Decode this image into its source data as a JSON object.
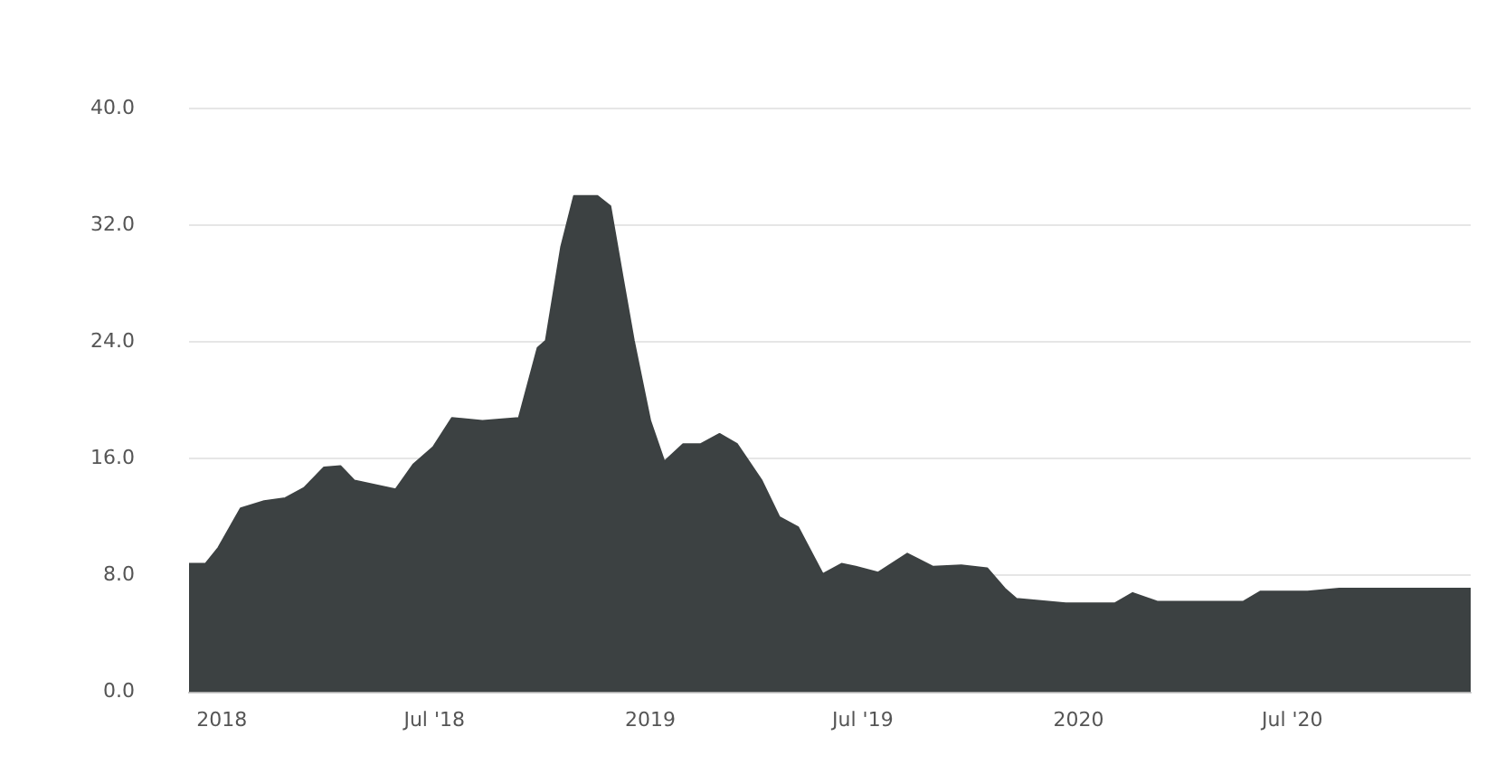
{
  "chart_data": {
    "type": "area",
    "x": [
      "2017-12-04",
      "2017-12-18",
      "2017-12-29",
      "2018-01-17",
      "2018-02-06",
      "2018-02-24",
      "2018-03-12",
      "2018-03-29",
      "2018-04-12",
      "2018-04-24",
      "2018-05-29",
      "2018-06-13",
      "2018-06-30",
      "2018-07-16",
      "2018-08-11",
      "2018-09-11",
      "2018-09-27",
      "2018-10-04",
      "2018-10-17",
      "2018-10-28",
      "2018-11-17",
      "2018-11-28",
      "2018-12-09",
      "2018-12-18",
      "2019-01-01",
      "2019-01-13",
      "2019-01-29",
      "2019-02-13",
      "2019-03-01",
      "2019-03-16",
      "2019-04-06",
      "2019-04-21",
      "2019-05-07",
      "2019-05-28",
      "2019-06-13",
      "2019-06-25",
      "2019-07-14",
      "2019-08-08",
      "2019-08-30",
      "2019-09-23",
      "2019-10-15",
      "2019-10-30",
      "2019-11-09",
      "2019-12-21",
      "2020-02-01",
      "2020-02-16",
      "2020-03-08",
      "2020-05-20",
      "2020-06-04",
      "2020-07-14",
      "2020-08-10",
      "2020-11-30"
    ],
    "values": [
      8.8,
      8.8,
      9.9,
      12.6,
      13.1,
      13.3,
      14.0,
      15.4,
      15.5,
      14.5,
      13.9,
      15.6,
      16.8,
      18.8,
      18.6,
      18.8,
      23.6,
      24.1,
      30.5,
      34.0,
      34.0,
      33.3,
      28.2,
      24.1,
      18.6,
      15.8,
      17.0,
      17.0,
      17.7,
      17.0,
      14.5,
      12.0,
      11.3,
      8.1,
      8.8,
      8.6,
      8.2,
      9.5,
      8.6,
      8.7,
      8.5,
      7.1,
      6.4,
      6.1,
      6.1,
      6.8,
      6.2,
      6.2,
      6.9,
      6.9,
      7.1,
      7.1
    ],
    "color": "#3c4142",
    "xlim": [
      "2017-12-04",
      "2020-11-30"
    ],
    "xticks": [
      {
        "value": "2018-01-01",
        "label": "2018"
      },
      {
        "value": "2018-07-01",
        "label": "Jul '18"
      },
      {
        "value": "2019-01-01",
        "label": "2019"
      },
      {
        "value": "2019-07-01",
        "label": "Jul '19"
      },
      {
        "value": "2020-01-01",
        "label": "2020"
      },
      {
        "value": "2020-07-01",
        "label": "Jul '20"
      }
    ],
    "ylim": [
      0,
      40
    ],
    "yticks": [
      {
        "value": 0,
        "label": "0.0"
      },
      {
        "value": 8,
        "label": "8.0"
      },
      {
        "value": 16,
        "label": "16.0"
      },
      {
        "value": 24,
        "label": "24.0"
      },
      {
        "value": 32,
        "label": "32.0"
      },
      {
        "value": 40,
        "label": "40.0"
      }
    ],
    "grid": "y"
  }
}
